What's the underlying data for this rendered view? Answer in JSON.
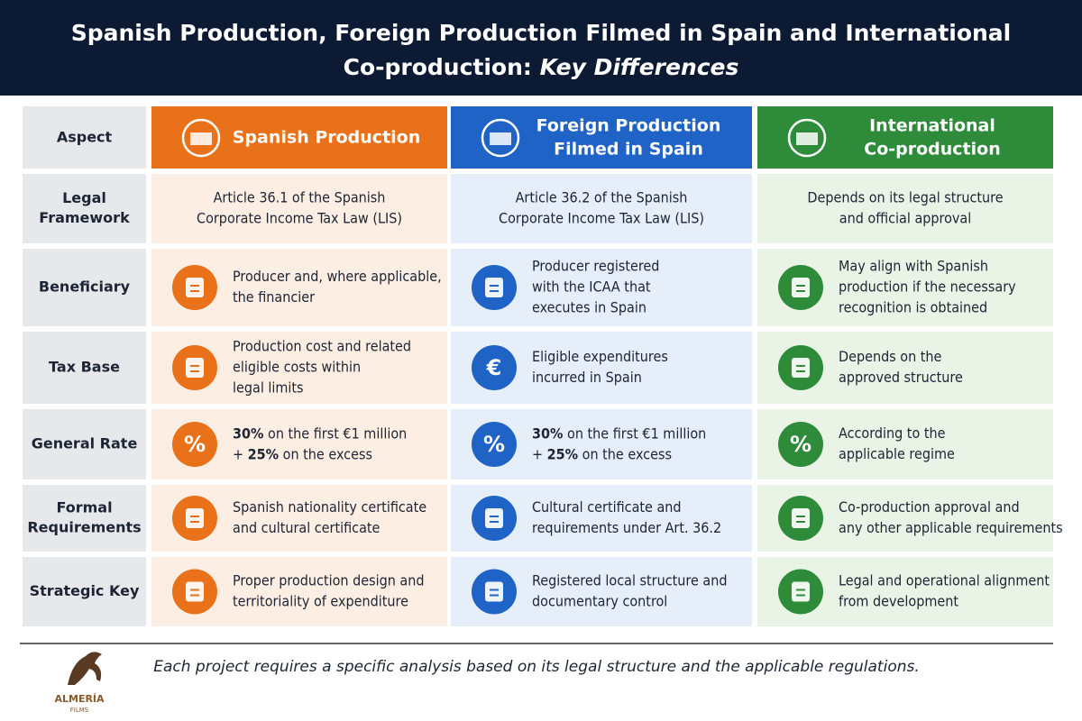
{
  "header": {
    "title_line1": "Spanish Production, Foreign Production Filmed in Spain and International",
    "title_line2": "Co-production: ",
    "title_emphasis": "Key Differences"
  },
  "table": {
    "corner": "Aspect",
    "columns": [
      {
        "lines": [
          "Spanish Production"
        ],
        "color": "#e8711a",
        "tint": "#fdeee3"
      },
      {
        "lines": [
          "Foreign Production",
          "Filmed in Spain"
        ],
        "color": "#1e63c5",
        "tint": "#e6eef9"
      },
      {
        "lines": [
          "International",
          "Co-production"
        ],
        "color": "#2e8b3a",
        "tint": "#e9f4e6"
      }
    ],
    "rows": [
      {
        "label": [
          "Legal",
          "Framework"
        ],
        "cells": [
          {
            "lines": [
              "Article 36.1 of the Spanish",
              "Corporate Income Tax Law (LIS)"
            ]
          },
          {
            "lines": [
              "Article 36.2 of the Spanish",
              "Corporate Income Tax Law (LIS)"
            ]
          },
          {
            "lines": [
              "Depends on its legal structure",
              "and official approval"
            ]
          }
        ]
      },
      {
        "label": [
          "Beneficiary"
        ],
        "cells": [
          {
            "lines": [
              "Producer and, where applicable,",
              "the financier"
            ]
          },
          {
            "lines": [
              "Producer registered",
              "with the ICAA that",
              "executes in Spain"
            ]
          },
          {
            "lines": [
              "May align with Spanish",
              "production if the necessary",
              "recognition is obtained"
            ]
          }
        ]
      },
      {
        "label": [
          "Tax Base"
        ],
        "cells": [
          {
            "lines": [
              "Production cost and related",
              "eligible costs within",
              "legal limits"
            ]
          },
          {
            "lines": [
              "Eligible expenditures",
              "incurred in Spain"
            ],
            "icon_text": "€"
          },
          {
            "lines": [
              "Depends on the",
              "approved structure"
            ]
          }
        ]
      },
      {
        "label": [
          "General Rate"
        ],
        "cells": [
          {
            "lines": [
              [
                {
                  "text": "30%",
                  "bold": true
                },
                {
                  "text": " on the first €1 million"
                }
              ],
              [
                {
                  "text": "+ "
                },
                {
                  "text": "25%",
                  "bold": true
                },
                {
                  "text": " on the excess"
                }
              ]
            ],
            "icon_text": "%"
          },
          {
            "lines": [
              [
                {
                  "text": "30%",
                  "bold": true
                },
                {
                  "text": " on the first €1 million"
                }
              ],
              [
                {
                  "text": "+ "
                },
                {
                  "text": "25%",
                  "bold": true
                },
                {
                  "text": " on the excess"
                }
              ]
            ],
            "icon_text": "%"
          },
          {
            "lines": [
              "According to the",
              "applicable regime"
            ],
            "icon_text": "%"
          }
        ]
      },
      {
        "label": [
          "Formal",
          "Requirements"
        ],
        "cells": [
          {
            "lines": [
              "Spanish nationality certificate",
              "and cultural certificate"
            ]
          },
          {
            "lines": [
              "Cultural certificate and",
              "requirements under Art. 36.2"
            ]
          },
          {
            "lines": [
              "Co-production approval and",
              "any other applicable requirements"
            ]
          }
        ]
      },
      {
        "label": [
          "Strategic Key"
        ],
        "cells": [
          {
            "lines": [
              "Proper production design and",
              "territoriality of expenditure"
            ]
          },
          {
            "lines": [
              "Registered local structure and",
              "documentary control"
            ]
          },
          {
            "lines": [
              "Legal and operational alignment",
              "from development"
            ]
          }
        ]
      }
    ]
  },
  "footer": {
    "note": "Each project requires a specific analysis based on its legal structure and the applicable regulations.",
    "logo_name": "ALMERÍA",
    "logo_sub": "FILMS"
  }
}
